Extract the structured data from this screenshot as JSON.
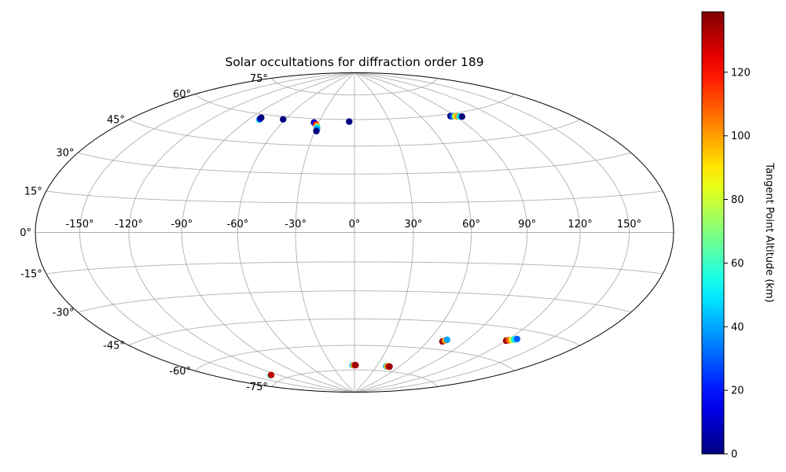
{
  "chart_data": {
    "type": "scatter",
    "projection": "hammer",
    "title": "Solar occultations for diffraction order 189",
    "x_ticks": [
      -150,
      -120,
      -90,
      -60,
      -30,
      0,
      30,
      60,
      90,
      120,
      150
    ],
    "x_tick_labels": [
      "-150°",
      "-120°",
      "-90°",
      "-60°",
      "-30°",
      "0°",
      "30°",
      "60°",
      "90°",
      "120°",
      "150°"
    ],
    "y_ticks": [
      -75,
      -60,
      -45,
      -30,
      -15,
      0,
      15,
      30,
      45,
      60,
      75
    ],
    "y_tick_labels": [
      "-75°",
      "-60°",
      "-45°",
      "-30°",
      "-15°",
      "0°",
      "15°",
      "30°",
      "45°",
      "60°",
      "75°"
    ],
    "grid": true,
    "colorbar": {
      "label": "Tangent Point Altitude (km)",
      "min": 0,
      "max": 139,
      "colormap": "jet",
      "ticks": [
        0,
        20,
        40,
        60,
        80,
        100,
        120
      ],
      "tick_labels": [
        "0",
        "20",
        "40",
        "60",
        "80",
        "100",
        "120"
      ]
    },
    "points": [
      {
        "lon": -81.5,
        "lat": 57.0,
        "alt": 60
      },
      {
        "lon": -81.7,
        "lat": 57.5,
        "alt": 20
      },
      {
        "lon": -82.0,
        "lat": 58.2,
        "alt": 0
      },
      {
        "lon": -62.0,
        "lat": 58.5,
        "alt": 0
      },
      {
        "lon": -34.0,
        "lat": 57.8,
        "alt": 0
      },
      {
        "lon": -32.8,
        "lat": 57.3,
        "alt": 20
      },
      {
        "lon": -31.5,
        "lat": 56.7,
        "alt": 120
      },
      {
        "lon": -30.3,
        "lat": 56.0,
        "alt": 100
      },
      {
        "lon": -29.6,
        "lat": 55.2,
        "alt": 60
      },
      {
        "lon": -29.2,
        "lat": 54.3,
        "alt": 40
      },
      {
        "lon": -28.9,
        "lat": 53.0,
        "alt": 0
      },
      {
        "lon": -4.5,
        "lat": 58.8,
        "alt": 0
      },
      {
        "lon": 86.0,
        "lat": 58.8,
        "alt": 0
      },
      {
        "lon": 87.8,
        "lat": 58.6,
        "alt": 30
      },
      {
        "lon": 89.6,
        "lat": 58.4,
        "alt": 80
      },
      {
        "lon": 91.4,
        "lat": 58.2,
        "alt": 100
      },
      {
        "lon": 93.2,
        "lat": 58.0,
        "alt": 50
      },
      {
        "lon": 95.0,
        "lat": 57.8,
        "alt": 0
      },
      {
        "lon": -130.0,
        "lat": -72.0,
        "alt": 60
      },
      {
        "lon": -128.3,
        "lat": -72.0,
        "alt": 130
      },
      {
        "lon": -2.5,
        "lat": -72.0,
        "alt": 40
      },
      {
        "lon": -1.2,
        "lat": -72.0,
        "alt": 80
      },
      {
        "lon": 0.2,
        "lat": -72.0,
        "alt": 120
      },
      {
        "lon": 1.5,
        "lat": -72.0,
        "alt": 135
      },
      {
        "lon": 43.0,
        "lat": -72.0,
        "alt": 40
      },
      {
        "lon": 44.5,
        "lat": -72.0,
        "alt": 90
      },
      {
        "lon": 46.0,
        "lat": -72.0,
        "alt": 125
      },
      {
        "lon": 47.5,
        "lat": -72.0,
        "alt": 135
      },
      {
        "lon": 72.0,
        "lat": -55.5,
        "alt": 135
      },
      {
        "lon": 73.2,
        "lat": -54.9,
        "alt": 100
      },
      {
        "lon": 74.2,
        "lat": -54.4,
        "alt": 40
      },
      {
        "lon": 120.0,
        "lat": -51.0,
        "alt": 135
      },
      {
        "lon": 121.5,
        "lat": -50.6,
        "alt": 110
      },
      {
        "lon": 123.0,
        "lat": -50.2,
        "alt": 80
      },
      {
        "lon": 124.5,
        "lat": -49.8,
        "alt": 50
      },
      {
        "lon": 126.0,
        "lat": -49.4,
        "alt": 30
      }
    ]
  }
}
